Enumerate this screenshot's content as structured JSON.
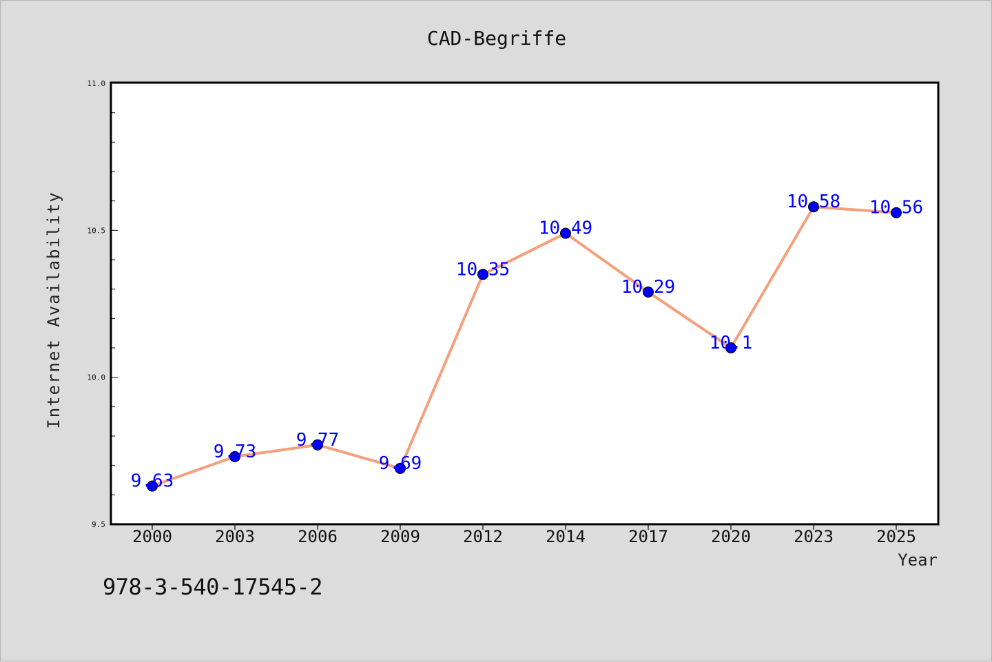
{
  "chart_data": {
    "type": "line",
    "title": "CAD-Begriffe",
    "xlabel": "Year",
    "ylabel": "Internet Availability",
    "categories": [
      "2000",
      "2003",
      "2006",
      "2009",
      "2012",
      "2014",
      "2017",
      "2020",
      "2023",
      "2025"
    ],
    "series": [
      {
        "values": [
          9.63,
          9.73,
          9.77,
          9.69,
          10.35,
          10.49,
          10.29,
          10.1,
          10.58,
          10.56
        ],
        "data_labels": [
          "9.63",
          "9.73",
          "9.77",
          "9.69",
          "10.35",
          "10.49",
          "10.29",
          "10.1",
          "10.58",
          "10.56"
        ]
      }
    ],
    "ylim": [
      9.5,
      11.0
    ],
    "yticks": [
      "9.5",
      "10.0",
      "10.5",
      "11.0"
    ],
    "grid": false,
    "colors": {
      "line": "#f4a07c",
      "marker": "#0000ee",
      "data_label": "#0000ff",
      "background": "#dcdcdc",
      "plot_background": "#ffffff"
    }
  },
  "footer": {
    "isbn": "978-3-540-17545-2"
  }
}
